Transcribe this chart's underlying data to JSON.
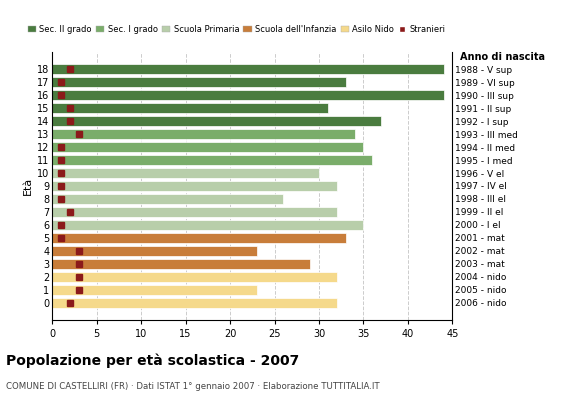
{
  "ages": [
    18,
    17,
    16,
    15,
    14,
    13,
    12,
    11,
    10,
    9,
    8,
    7,
    6,
    5,
    4,
    3,
    2,
    1,
    0
  ],
  "bar_values": [
    44,
    33,
    44,
    31,
    37,
    34,
    35,
    36,
    30,
    32,
    26,
    32,
    35,
    33,
    23,
    29,
    32,
    23,
    32
  ],
  "stranieri": [
    2,
    1,
    1,
    2,
    2,
    3,
    1,
    1,
    1,
    1,
    1,
    2,
    1,
    1,
    3,
    3,
    3,
    3,
    2
  ],
  "anno_nascita": [
    "1988 - V sup",
    "1989 - VI sup",
    "1990 - III sup",
    "1991 - II sup",
    "1992 - I sup",
    "1993 - III med",
    "1994 - II med",
    "1995 - I med",
    "1996 - V el",
    "1997 - IV el",
    "1998 - III el",
    "1999 - II el",
    "2000 - I el",
    "2001 - mat",
    "2002 - mat",
    "2003 - mat",
    "2004 - nido",
    "2005 - nido",
    "2006 - nido"
  ],
  "bar_colors": [
    "#4a7c3f",
    "#4a7c3f",
    "#4a7c3f",
    "#4a7c3f",
    "#4a7c3f",
    "#7aad6a",
    "#7aad6a",
    "#7aad6a",
    "#b8ceaa",
    "#b8ceaa",
    "#b8ceaa",
    "#b8ceaa",
    "#b8ceaa",
    "#c87d3a",
    "#c87d3a",
    "#c87d3a",
    "#f5d98b",
    "#f5d98b",
    "#f5d98b"
  ],
  "legend_labels": [
    "Sec. II grado",
    "Sec. I grado",
    "Scuola Primaria",
    "Scuola dell'Infanzia",
    "Asilo Nido",
    "Stranieri"
  ],
  "legend_colors": [
    "#4a7c3f",
    "#7aad6a",
    "#b8ceaa",
    "#c87d3a",
    "#f5d98b",
    "#8b1a1a"
  ],
  "stranieri_color": "#8b1a1a",
  "title": "Popolazione per età scolastica - 2007",
  "subtitle": "COMUNE DI CASTELLIRI (FR) · Dati ISTAT 1° gennaio 2007 · Elaborazione TUTTITALIA.IT",
  "ylabel": "Età",
  "ylabel2": "Anno di nascita",
  "xlim": [
    0,
    45
  ],
  "xticks": [
    0,
    5,
    10,
    15,
    20,
    25,
    30,
    35,
    40,
    45
  ],
  "background_color": "#ffffff",
  "grid_color": "#cccccc"
}
